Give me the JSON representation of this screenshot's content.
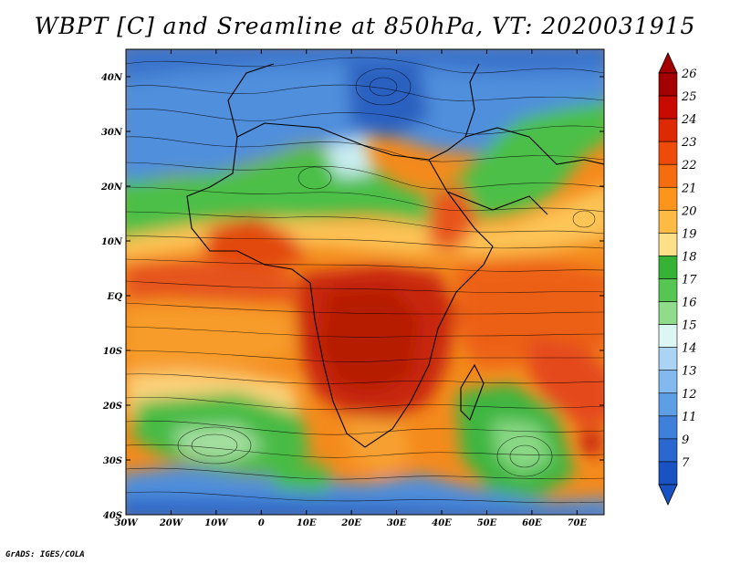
{
  "title": "WBPT [C] and Sreamline at 850hPa, VT: 2020031915",
  "footer": "GrADS: IGES/COLA",
  "map": {
    "lon_range": [
      -30,
      76
    ],
    "lat_range": [
      -40,
      45
    ],
    "lon_ticks": [
      {
        "value": -30,
        "label": "30W"
      },
      {
        "value": -20,
        "label": "20W"
      },
      {
        "value": -10,
        "label": "10W"
      },
      {
        "value": 0,
        "label": "0"
      },
      {
        "value": 10,
        "label": "10E"
      },
      {
        "value": 20,
        "label": "20E"
      },
      {
        "value": 30,
        "label": "30E"
      },
      {
        "value": 40,
        "label": "40E"
      },
      {
        "value": 50,
        "label": "50E"
      },
      {
        "value": 60,
        "label": "60E"
      },
      {
        "value": 70,
        "label": "70E"
      }
    ],
    "lat_ticks": [
      {
        "value": 40,
        "label": "40N"
      },
      {
        "value": 30,
        "label": "30N"
      },
      {
        "value": 20,
        "label": "20N"
      },
      {
        "value": 10,
        "label": "10N"
      },
      {
        "value": 0,
        "label": "EQ"
      },
      {
        "value": -10,
        "label": "10S"
      },
      {
        "value": -20,
        "label": "20S"
      },
      {
        "value": -30,
        "label": "30S"
      },
      {
        "value": -40,
        "label": "40S"
      }
    ]
  },
  "colorbar": {
    "levels": [
      {
        "label": "26",
        "color": "#a50000"
      },
      {
        "label": "25",
        "color": "#c80a00"
      },
      {
        "label": "24",
        "color": "#de2a04"
      },
      {
        "label": "23",
        "color": "#ee4a0a"
      },
      {
        "label": "22",
        "color": "#f66c10"
      },
      {
        "label": "21",
        "color": "#fb951c"
      },
      {
        "label": "20",
        "color": "#fdba44"
      },
      {
        "label": "19",
        "color": "#fee08a"
      },
      {
        "label": "18",
        "color": "#36b234"
      },
      {
        "label": "17",
        "color": "#56c552"
      },
      {
        "label": "16",
        "color": "#8fdc8a"
      },
      {
        "label": "15",
        "color": "#dcf6f4"
      },
      {
        "label": "14",
        "color": "#aad3f4"
      },
      {
        "label": "13",
        "color": "#82b9ee"
      },
      {
        "label": "12",
        "color": "#5e9ee4"
      },
      {
        "label": "11",
        "color": "#3f81da"
      },
      {
        "label": "9",
        "color": "#2a68d0"
      },
      {
        "label": "7",
        "color": "#1a52c4"
      }
    ],
    "top_arrow_color": "#a50000",
    "bottom_arrow_color": "#1a52c4"
  }
}
